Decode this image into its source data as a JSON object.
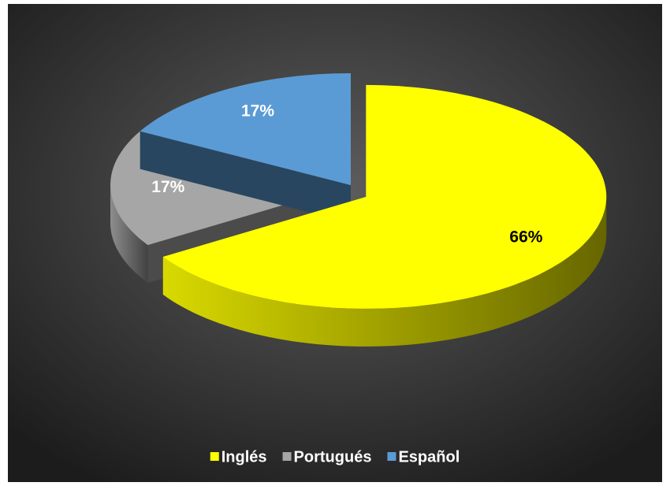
{
  "chart_data": {
    "type": "pie",
    "categories": [
      "Inglés",
      "Portugués",
      "Español"
    ],
    "values": [
      66,
      17,
      17
    ],
    "value_labels": [
      "66%",
      "17%",
      "17%"
    ],
    "colors": [
      "#ffff00",
      "#a6a6a6",
      "#5b9bd5"
    ],
    "exploded": [
      true,
      false,
      false
    ],
    "legend": "bottom"
  }
}
